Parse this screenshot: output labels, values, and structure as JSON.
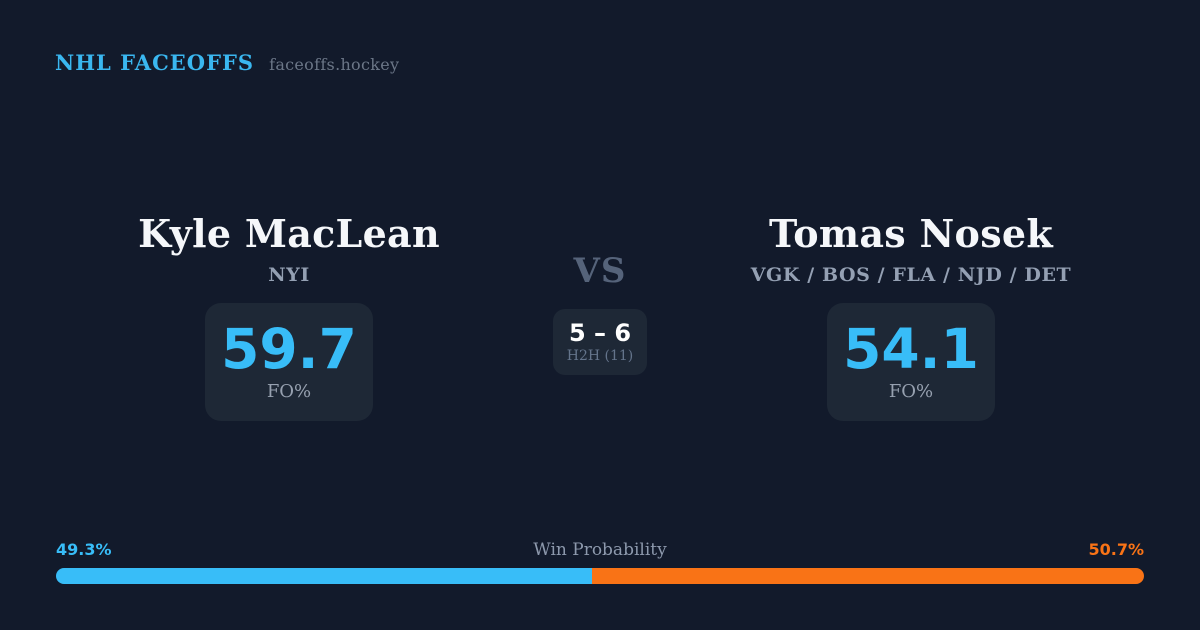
{
  "header": {
    "brand": "NHL FACEOFFS",
    "site": "faceoffs.hockey"
  },
  "matchup": {
    "vs_label": "VS",
    "h2h": {
      "score": "5 – 6",
      "label": "H2H (11)"
    },
    "left": {
      "name": "Kyle MacLean",
      "teams": "NYI",
      "value": "59.7",
      "metric": "FO%"
    },
    "right": {
      "name": "Tomas Nosek",
      "teams": "VGK / BOS / FLA / NJD / DET",
      "value": "54.1",
      "metric": "FO%"
    }
  },
  "win_probability": {
    "title": "Win Probability",
    "left_pct": "49.3%",
    "right_pct": "50.7%",
    "left_width": "49.3%",
    "right_width": "50.7%"
  },
  "colors": {
    "background": "#121a2b",
    "card": "#1e2836",
    "accent_blue": "#38bdf8",
    "accent_orange": "#f97316",
    "brand_blue": "#3ab7f0"
  }
}
